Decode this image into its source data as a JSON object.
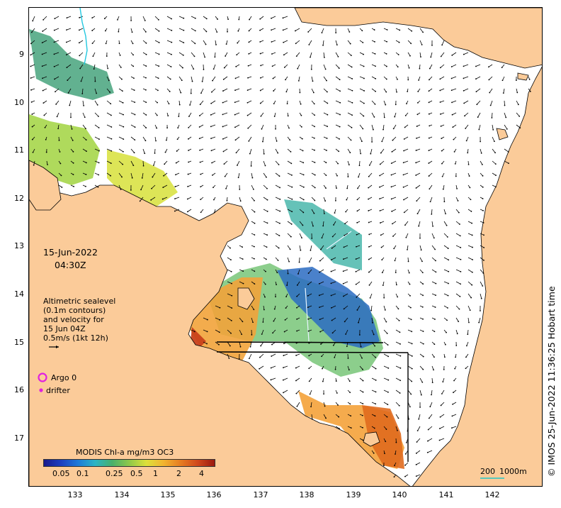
{
  "map": {
    "date": "15-Jun-2022",
    "time": "04:30Z",
    "description_lines": [
      "Altimetric sealevel",
      "(0.1m contours)",
      "and velocity for",
      "15 Jun 04Z",
      "0.5m/s (1kt 12h)"
    ],
    "legend": {
      "argo_label": "Argo 0",
      "drifter_label": "drifter",
      "argo_color": "#e020e0",
      "drifter_color": "#e020e0"
    },
    "colorbar": {
      "title": "MODIS Chl-a mg/m3 OC3",
      "ticks": [
        "0.05",
        "0.1",
        "0.25",
        "0.5",
        "1",
        "2",
        "4"
      ]
    },
    "scale_bar": {
      "label_200": "200",
      "label_1000": "1000m"
    },
    "credit": "© IMOS 25-Jun-2022 11:36:25 Hobart time",
    "y_ticks": [
      "9",
      "10",
      "11",
      "12",
      "13",
      "14",
      "15",
      "16",
      "17"
    ],
    "x_ticks": [
      "133",
      "134",
      "135",
      "136",
      "137",
      "138",
      "139",
      "140",
      "141",
      "142"
    ],
    "colors": {
      "land": "#fbcb99",
      "land_edge": "#000000",
      "arrow": "#000000",
      "argo_ring": "#e020e0"
    }
  }
}
